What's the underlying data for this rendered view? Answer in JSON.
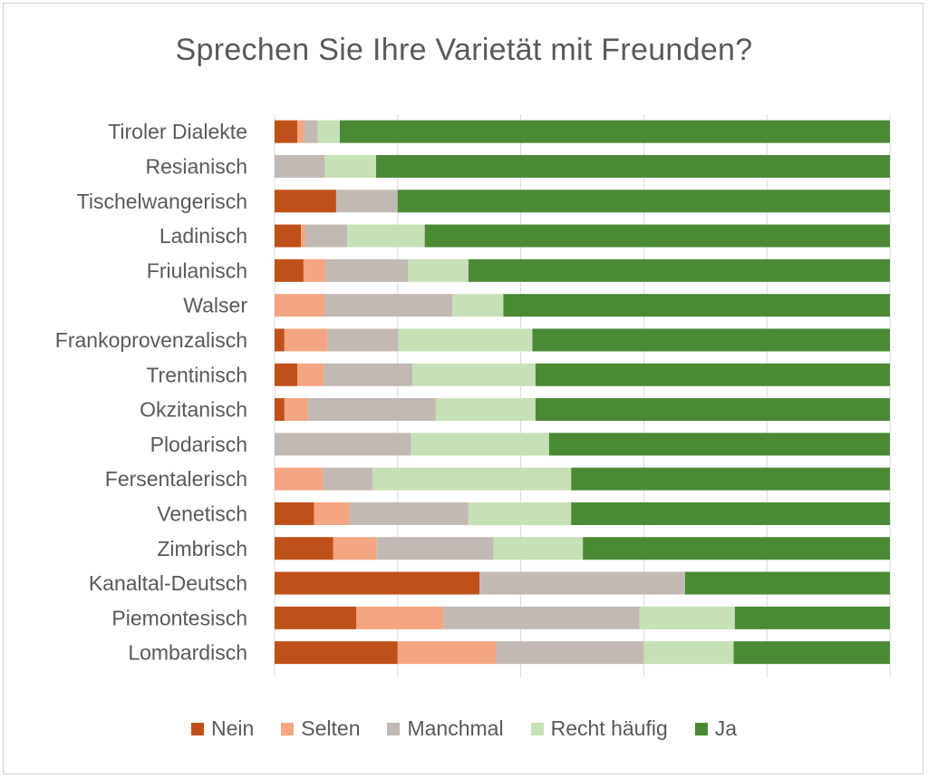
{
  "chart_data": {
    "type": "bar",
    "orientation": "horizontal",
    "stacked": "100%",
    "title": "Sprechen Sie Ihre Varietät mit Freunden?",
    "categories": [
      "Tiroler Dialekte",
      "Resianisch",
      "Tischelwangerisch",
      "Ladinisch",
      "Friulanisch",
      "Walser",
      "Frankoprovenzalisch",
      "Trentinisch",
      "Okzitanisch",
      "Plodarisch",
      "Fersentalerisch",
      "Venetisch",
      "Zimbrisch",
      "Kanaltal-Deutsch",
      "Piemontesisch",
      "Lombardisch"
    ],
    "xlim": [
      0,
      100
    ],
    "grid": true,
    "legend_position": "bottom",
    "series": [
      {
        "name": "Nein",
        "color": "#c0501a",
        "values": [
          3.7,
          0,
          10.0,
          4.3,
          4.7,
          0,
          1.6,
          3.7,
          1.6,
          0,
          0,
          6.4,
          9.5,
          33.3,
          13.3,
          20.0
        ]
      },
      {
        "name": "Selten",
        "color": "#f4a582",
        "values": [
          1.1,
          0,
          0,
          0.7,
          3.6,
          8.9,
          7.0,
          4.3,
          3.8,
          0,
          7.9,
          5.8,
          7.1,
          0,
          14.2,
          16.0
        ]
      },
      {
        "name": "Manchmal",
        "color": "#c2b9b4",
        "values": [
          2.2,
          8.1,
          10.0,
          6.8,
          13.4,
          22.9,
          11.5,
          14.4,
          20.8,
          22.2,
          8.0,
          19.3,
          19.0,
          33.4,
          31.8,
          24.0
        ]
      },
      {
        "name": "Recht häufig",
        "color": "#c6e1b5",
        "values": [
          3.6,
          8.4,
          0,
          12.6,
          9.8,
          9.1,
          21.8,
          20.0,
          16.2,
          22.4,
          32.3,
          16.7,
          14.5,
          0,
          15.5,
          14.6
        ]
      },
      {
        "name": "Ja",
        "color": "#4a8a35",
        "values": [
          89.4,
          83.5,
          80.0,
          75.6,
          68.5,
          69.1,
          58.1,
          57.6,
          57.6,
          55.4,
          51.8,
          51.8,
          49.9,
          33.3,
          25.2,
          25.4
        ]
      }
    ]
  }
}
